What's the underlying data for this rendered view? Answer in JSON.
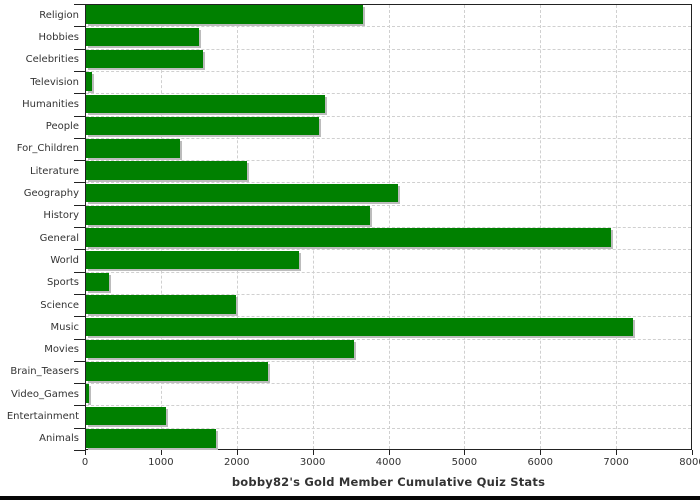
{
  "chart_data": {
    "type": "bar",
    "orientation": "horizontal",
    "title": "bobby82's Gold Member Cumulative Quiz Stats",
    "categories": [
      "Religion",
      "Hobbies",
      "Celebrities",
      "Television",
      "Humanities",
      "People",
      "For_Children",
      "Literature",
      "Geography",
      "History",
      "General",
      "World",
      "Sports",
      "Science",
      "Music",
      "Movies",
      "Brain_Teasers",
      "Video_Games",
      "Entertainment",
      "Animals"
    ],
    "values": [
      3660,
      1500,
      1550,
      95,
      3160,
      3090,
      1250,
      2140,
      4130,
      3760,
      6930,
      2820,
      310,
      1990,
      7220,
      3550,
      2410,
      50,
      1070,
      1730
    ],
    "xlim": [
      0,
      8000
    ],
    "xticks": [
      0,
      1000,
      2000,
      3000,
      4000,
      5000,
      6000,
      7000,
      8000
    ],
    "xlabel": "",
    "ylabel": "",
    "grid": "dashed",
    "legend": "none",
    "bar_color": "#008000",
    "bar_shadow_color": "#bcbcbc",
    "grid_color": "#d0d0d0",
    "axis_color": "#222222",
    "text_color": "#333333",
    "background_color": "#ffffff"
  }
}
